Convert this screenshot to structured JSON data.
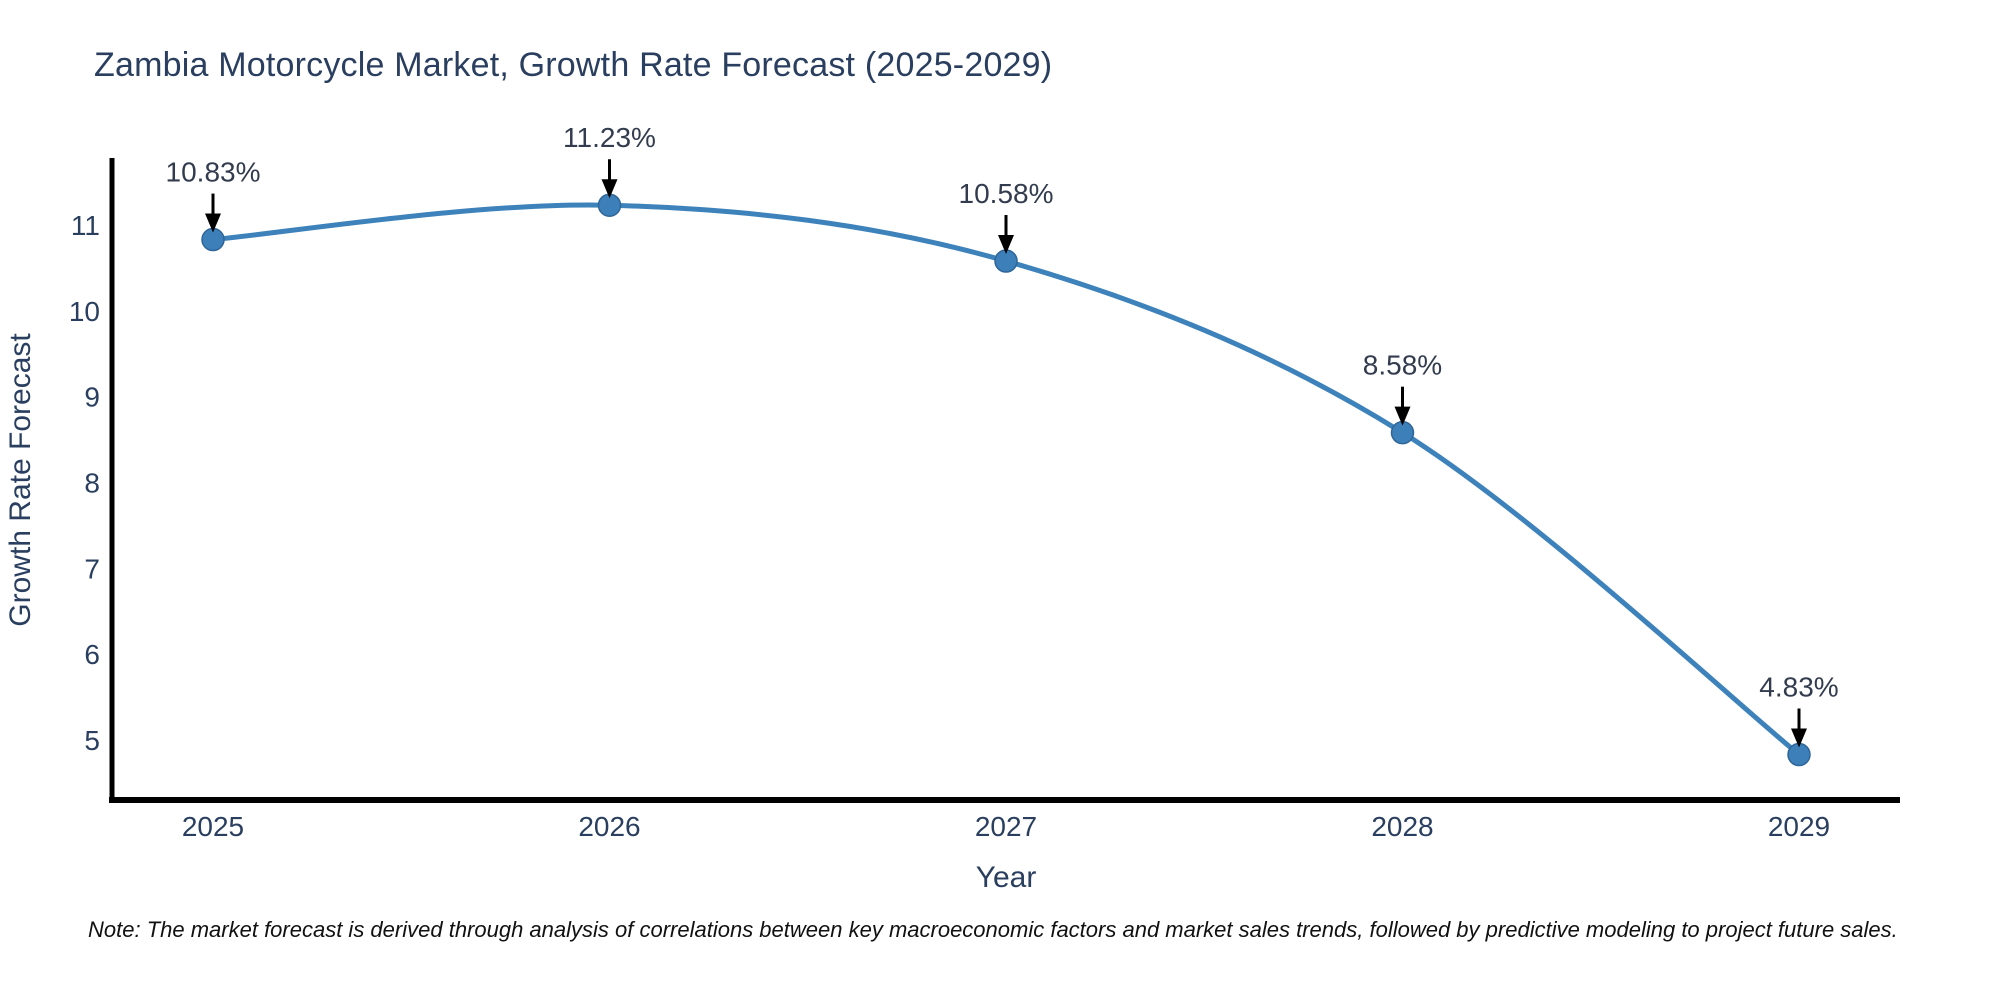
{
  "title": "Zambia Motorcycle Market, Growth Rate Forecast (2025-2029)",
  "note": "Note: The market forecast is derived through analysis of correlations between key macroeconomic factors and market sales trends, followed by predictive modeling to project future sales.",
  "chart_data": {
    "type": "line",
    "title": "Zambia Motorcycle Market, Growth Rate Forecast (2025-2029)",
    "categories": [
      "2025",
      "2026",
      "2027",
      "2028",
      "2029"
    ],
    "values": [
      10.83,
      11.23,
      10.58,
      8.58,
      4.83
    ],
    "point_labels": [
      "10.83%",
      "11.23%",
      "10.58%",
      "8.58%",
      "4.83%"
    ],
    "xlabel": "Year",
    "ylabel": "Growth Rate Forecast",
    "yticks": [
      5,
      6,
      7,
      8,
      9,
      10,
      11
    ],
    "ylim": [
      4.3,
      11.757
    ],
    "grid": false,
    "legend": "none",
    "line_color": "#3d82ba",
    "marker_color": "#3d7fb8",
    "marker_edge_color": "#2f6699",
    "axis_color": "#000000",
    "text_color": "#2a3f5f",
    "annotation_color": "#333c4e",
    "arrow_color": "#000000"
  }
}
